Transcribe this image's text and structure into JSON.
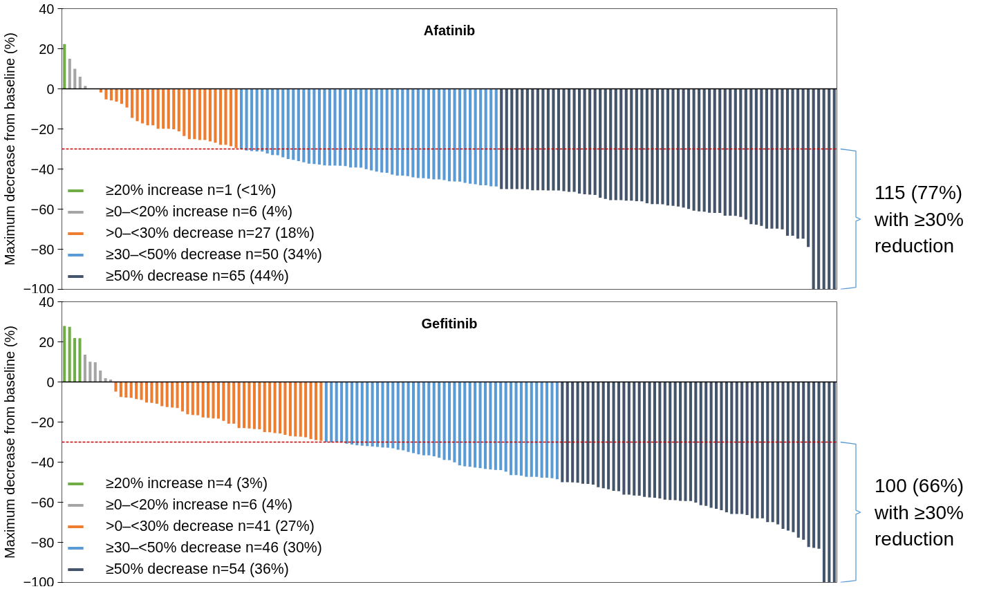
{
  "chart_data": [
    {
      "type": "bar",
      "title": "Afatinib",
      "ylabel": "Maximum decrease from baseline (%)",
      "ylim": [
        -100,
        40
      ],
      "tick_labels": "y",
      "grid": false,
      "legend": "bottom left",
      "categories": [
        null,
        null,
        null,
        null,
        null,
        null,
        null,
        null,
        null,
        null,
        null,
        null,
        null,
        null,
        null,
        null,
        null,
        null,
        null,
        null,
        null,
        null,
        null,
        null,
        null,
        null,
        null,
        null,
        null,
        null,
        null,
        null,
        null,
        null,
        null,
        null,
        null,
        null,
        null,
        null,
        null,
        null,
        null,
        null,
        null,
        null,
        null,
        null,
        null,
        null,
        null,
        null,
        null,
        null,
        null,
        null,
        null,
        null,
        null,
        null,
        null,
        null,
        null,
        null,
        null,
        null,
        null,
        null,
        null,
        null,
        null,
        null,
        null,
        null,
        null,
        null,
        null,
        null,
        null,
        null,
        null,
        null,
        null,
        null,
        null,
        null,
        null,
        null,
        null,
        null,
        null,
        null,
        null,
        null,
        null,
        null,
        null,
        null,
        null,
        null,
        null,
        null,
        null,
        null,
        null,
        null,
        null,
        null,
        null,
        null,
        null,
        null,
        null,
        null,
        null,
        null,
        null,
        null,
        null,
        null,
        null,
        null,
        null,
        null,
        null,
        null,
        null,
        null,
        null,
        null,
        null,
        null,
        null,
        null,
        null,
        null,
        null,
        null,
        null,
        null,
        null,
        null,
        null,
        null,
        null,
        null,
        null,
        null,
        null
      ],
      "yticks": [
        {
          "value": -100,
          "label": "−100"
        },
        {
          "value": -80,
          "label": "−80"
        },
        {
          "value": -60,
          "label": "−60"
        },
        {
          "value": -40,
          "label": "−40"
        },
        {
          "value": -20,
          "label": "−20"
        },
        0,
        20,
        40
      ],
      "ref_lines": [
        {
          "axis": "y",
          "value": 0,
          "color": "#000000",
          "line_style": "solid"
        },
        {
          "axis": "y",
          "value": -30,
          "color": "#c00000",
          "line_style": "dashed"
        }
      ],
      "annotations": [
        "115 (77%)\nwith ≥30%\nreduction"
      ],
      "series": [
        {
          "name": "≥20% increase n=1 (<1%)",
          "color": "#70ad47",
          "values": [
            22.3,
            null,
            null,
            null,
            null,
            null,
            null,
            null,
            null,
            null,
            null,
            null,
            null,
            null,
            null,
            null,
            null,
            null,
            null,
            null,
            null,
            null,
            null,
            null,
            null,
            null,
            null,
            null,
            null,
            null,
            null,
            null,
            null,
            null,
            null,
            null,
            null,
            null,
            null,
            null,
            null,
            null,
            null,
            null,
            null,
            null,
            null,
            null,
            null,
            null,
            null,
            null,
            null,
            null,
            null,
            null,
            null,
            null,
            null,
            null,
            null,
            null,
            null,
            null,
            null,
            null,
            null,
            null,
            null,
            null,
            null,
            null,
            null,
            null,
            null,
            null,
            null,
            null,
            null,
            null,
            null,
            null,
            null,
            null,
            null,
            null,
            null,
            null,
            null,
            null,
            null,
            null,
            null,
            null,
            null,
            null,
            null,
            null,
            null,
            null,
            null,
            null,
            null,
            null,
            null,
            null,
            null,
            null,
            null,
            null,
            null,
            null,
            null,
            null,
            null,
            null,
            null,
            null,
            null,
            null,
            null,
            null,
            null,
            null,
            null,
            null,
            null,
            null,
            null,
            null,
            null,
            null,
            null,
            null,
            null,
            null,
            null,
            null,
            null,
            null,
            null,
            null,
            null,
            null,
            null,
            null,
            null,
            null,
            null
          ]
        },
        {
          "name": "≥0–<20% increase n=6 (4%)",
          "color": "#a5a5a5",
          "values": [
            null,
            15,
            10,
            6,
            1.5,
            0,
            0,
            null,
            null,
            null,
            null,
            null,
            null,
            null,
            null,
            null,
            null,
            null,
            null,
            null,
            null,
            null,
            null,
            null,
            null,
            null,
            null,
            null,
            null,
            null,
            null,
            null,
            null,
            null,
            null,
            null,
            null,
            null,
            null,
            null,
            null,
            null,
            null,
            null,
            null,
            null,
            null,
            null,
            null,
            null,
            null,
            null,
            null,
            null,
            null,
            null,
            null,
            null,
            null,
            null,
            null,
            null,
            null,
            null,
            null,
            null,
            null,
            null,
            null,
            null,
            null,
            null,
            null,
            null,
            null,
            null,
            null,
            null,
            null,
            null,
            null,
            null,
            null,
            null,
            null,
            null,
            null,
            null,
            null,
            null,
            null,
            null,
            null,
            null,
            null,
            null,
            null,
            null,
            null,
            null,
            null,
            null,
            null,
            null,
            null,
            null,
            null,
            null,
            null,
            null,
            null,
            null,
            null,
            null,
            null,
            null,
            null,
            null,
            null,
            null,
            null,
            null,
            null,
            null,
            null,
            null,
            null,
            null,
            null,
            null,
            null,
            null,
            null,
            null,
            null,
            null,
            null,
            null,
            null,
            null,
            null,
            null,
            null,
            null,
            null,
            null,
            null,
            null,
            null
          ]
        },
        {
          "name": ">0–<30% decrease n=27 (18%)",
          "color": "#ed7d31",
          "values": [
            null,
            null,
            null,
            null,
            null,
            null,
            null,
            -1.8,
            -5.3,
            -5.8,
            -6.4,
            -7.5,
            -9.3,
            -14.5,
            -16.1,
            -17.2,
            -18.2,
            -18.2,
            -19.9,
            -19.9,
            -19.9,
            -20.2,
            -21.2,
            -23.5,
            -25.1,
            -25.1,
            -25.5,
            -25.5,
            -26.2,
            -26.9,
            -27.9,
            -27.9,
            -28.6,
            -29.6,
            null,
            null,
            null,
            null,
            null,
            null,
            null,
            null,
            null,
            null,
            null,
            null,
            null,
            null,
            null,
            null,
            null,
            null,
            null,
            null,
            null,
            null,
            null,
            null,
            null,
            null,
            null,
            null,
            null,
            null,
            null,
            null,
            null,
            null,
            null,
            null,
            null,
            null,
            null,
            null,
            null,
            null,
            null,
            null,
            null,
            null,
            null,
            null,
            null,
            null,
            null,
            null,
            null,
            null,
            null,
            null,
            null,
            null,
            null,
            null,
            null,
            null,
            null,
            null,
            null,
            null,
            null,
            null,
            null,
            null,
            null,
            null,
            null,
            null,
            null,
            null,
            null,
            null,
            null,
            null,
            null,
            null,
            null,
            null,
            null,
            null,
            null,
            null,
            null,
            null,
            null,
            null,
            null,
            null,
            null,
            null,
            null,
            null,
            null,
            null,
            null,
            null,
            null,
            null,
            null,
            null,
            null,
            null,
            null,
            null,
            null,
            null,
            null,
            null,
            null
          ]
        },
        {
          "name": "≥30–<50% decrease n=50 (34%)",
          "color": "#5b9bd5",
          "values": [
            null,
            null,
            null,
            null,
            null,
            null,
            null,
            null,
            null,
            null,
            null,
            null,
            null,
            null,
            null,
            null,
            null,
            null,
            null,
            null,
            null,
            null,
            null,
            null,
            null,
            null,
            null,
            null,
            null,
            null,
            null,
            null,
            null,
            null,
            -30.0,
            -30.8,
            -31.0,
            -31.2,
            -31.3,
            -32.2,
            -33.0,
            -33.1,
            -34.1,
            -35.0,
            -35.4,
            -36.0,
            -36.6,
            -37.3,
            -37.5,
            -37.8,
            -38.2,
            -38.3,
            -38.3,
            -38.4,
            -38.5,
            -39.2,
            -39.2,
            -39.3,
            -40.1,
            -40.7,
            -41.3,
            -41.7,
            -41.9,
            -42.8,
            -43.3,
            -43.3,
            -43.5,
            -44.1,
            -44.5,
            -44.6,
            -44.8,
            -45.2,
            -45.2,
            -45.5,
            -46.1,
            -46.2,
            -46.3,
            -46.9,
            -47.3,
            -47.6,
            -48.1,
            -48.1,
            -48.6,
            -48.7,
            null,
            null,
            null,
            null,
            null,
            null,
            null,
            null,
            null,
            null,
            null,
            null,
            null,
            null,
            null,
            null,
            null,
            null,
            null,
            null,
            null,
            null,
            null,
            null,
            null,
            null,
            null,
            null,
            null,
            null,
            null,
            null,
            null,
            null,
            null,
            null,
            null,
            null,
            null,
            null,
            null,
            null,
            null,
            null,
            null,
            null,
            null,
            null,
            null,
            null,
            null,
            null,
            null,
            null,
            null,
            null,
            null,
            null,
            null,
            null,
            null,
            null,
            null,
            null,
            null
          ]
        },
        {
          "name": "≥50% decrease n=65 (44%)",
          "color": "#44546a",
          "values": [
            null,
            null,
            null,
            null,
            null,
            null,
            null,
            null,
            null,
            null,
            null,
            null,
            null,
            null,
            null,
            null,
            null,
            null,
            null,
            null,
            null,
            null,
            null,
            null,
            null,
            null,
            null,
            null,
            null,
            null,
            null,
            null,
            null,
            null,
            null,
            null,
            null,
            null,
            null,
            null,
            null,
            null,
            null,
            null,
            null,
            null,
            null,
            null,
            null,
            null,
            null,
            null,
            null,
            null,
            null,
            null,
            null,
            null,
            null,
            null,
            null,
            null,
            null,
            null,
            null,
            null,
            null,
            null,
            null,
            null,
            null,
            null,
            null,
            null,
            null,
            null,
            null,
            null,
            null,
            null,
            null,
            null,
            null,
            null,
            -50.0,
            -50.0,
            -50.0,
            -50.0,
            -50.0,
            -50.1,
            -50.6,
            -50.6,
            -50.6,
            -50.7,
            -50.7,
            -50.7,
            -51.0,
            -51.4,
            -51.4,
            -52.2,
            -52.6,
            -52.8,
            -52.9,
            -54.3,
            -54.9,
            -55.5,
            -55.5,
            -55.5,
            -55.8,
            -55.8,
            -56.0,
            -56.1,
            -57.1,
            -57.5,
            -57.5,
            -57.6,
            -58.2,
            -58.4,
            -58.7,
            -59.2,
            -59.9,
            -60.8,
            -61.1,
            -61.3,
            -61.8,
            -61.9,
            -61.9,
            -63.3,
            -63.3,
            -63.4,
            -63.9,
            -65.2,
            -67.5,
            -67.8,
            -68.4,
            -69.7,
            -69.7,
            -69.7,
            -70.1,
            -73.3,
            -73.3,
            -74.7,
            -74.7,
            -78.9,
            -100,
            -100,
            -100,
            -100,
            -100
          ]
        }
      ]
    },
    {
      "type": "bar",
      "title": "Gefitinib",
      "ylabel": "Maximum decrease from baseline (%)",
      "ylim": [
        -100,
        40
      ],
      "tick_labels": "y",
      "grid": false,
      "legend": "bottom left",
      "categories": [
        null,
        null,
        null,
        null,
        null,
        null,
        null,
        null,
        null,
        null,
        null,
        null,
        null,
        null,
        null,
        null,
        null,
        null,
        null,
        null,
        null,
        null,
        null,
        null,
        null,
        null,
        null,
        null,
        null,
        null,
        null,
        null,
        null,
        null,
        null,
        null,
        null,
        null,
        null,
        null,
        null,
        null,
        null,
        null,
        null,
        null,
        null,
        null,
        null,
        null,
        null,
        null,
        null,
        null,
        null,
        null,
        null,
        null,
        null,
        null,
        null,
        null,
        null,
        null,
        null,
        null,
        null,
        null,
        null,
        null,
        null,
        null,
        null,
        null,
        null,
        null,
        null,
        null,
        null,
        null,
        null,
        null,
        null,
        null,
        null,
        null,
        null,
        null,
        null,
        null,
        null,
        null,
        null,
        null,
        null,
        null,
        null,
        null,
        null,
        null,
        null,
        null,
        null,
        null,
        null,
        null,
        null,
        null,
        null,
        null,
        null,
        null,
        null,
        null,
        null,
        null,
        null,
        null,
        null,
        null,
        null,
        null,
        null,
        null,
        null,
        null,
        null,
        null,
        null,
        null,
        null,
        null,
        null,
        null,
        null,
        null,
        null,
        null,
        null,
        null,
        null,
        null,
        null,
        null,
        null,
        null,
        null,
        null,
        null,
        null,
        null
      ],
      "yticks": [
        {
          "value": -100,
          "label": "−100"
        },
        {
          "value": -80,
          "label": "−80"
        },
        {
          "value": -60,
          "label": "−60"
        },
        {
          "value": -40,
          "label": "−40"
        },
        {
          "value": -20,
          "label": "−20"
        },
        0,
        20,
        40
      ],
      "ref_lines": [
        {
          "axis": "y",
          "value": 0,
          "color": "#000000",
          "line_style": "solid"
        },
        {
          "axis": "y",
          "value": -30,
          "color": "#c00000",
          "line_style": "dashed"
        }
      ],
      "annotations": [
        "100 (66%)\nwith ≥30%\nreduction"
      ],
      "series": [
        {
          "name": "≥20% increase n=4 (3%)",
          "color": "#70ad47",
          "values": [
            27.9,
            27.5,
            21.9,
            21.8,
            null,
            null,
            null,
            null,
            null,
            null,
            null,
            null,
            null,
            null,
            null,
            null,
            null,
            null,
            null,
            null,
            null,
            null,
            null,
            null,
            null,
            null,
            null,
            null,
            null,
            null,
            null,
            null,
            null,
            null,
            null,
            null,
            null,
            null,
            null,
            null,
            null,
            null,
            null,
            null,
            null,
            null,
            null,
            null,
            null,
            null,
            null,
            null,
            null,
            null,
            null,
            null,
            null,
            null,
            null,
            null,
            null,
            null,
            null,
            null,
            null,
            null,
            null,
            null,
            null,
            null,
            null,
            null,
            null,
            null,
            null,
            null,
            null,
            null,
            null,
            null,
            null,
            null,
            null,
            null,
            null,
            null,
            null,
            null,
            null,
            null,
            null,
            null,
            null,
            null,
            null,
            null,
            null,
            null,
            null,
            null,
            null,
            null,
            null,
            null,
            null,
            null,
            null,
            null,
            null,
            null,
            null,
            null,
            null,
            null,
            null,
            null,
            null,
            null,
            null,
            null,
            null,
            null,
            null,
            null,
            null,
            null,
            null,
            null,
            null,
            null,
            null,
            null,
            null,
            null,
            null,
            null,
            null,
            null,
            null,
            null,
            null,
            null,
            null,
            null,
            null,
            null,
            null,
            null,
            null,
            null,
            null
          ]
        },
        {
          "name": "≥0–<20% increase n=6 (4%)",
          "color": "#a5a5a5",
          "values": [
            null,
            null,
            null,
            null,
            13.6,
            10.1,
            9.8,
            5.7,
            1.9,
            1.2,
            null,
            null,
            null,
            null,
            null,
            null,
            null,
            null,
            null,
            null,
            null,
            null,
            null,
            null,
            null,
            null,
            null,
            null,
            null,
            null,
            null,
            null,
            null,
            null,
            null,
            null,
            null,
            null,
            null,
            null,
            null,
            null,
            null,
            null,
            null,
            null,
            null,
            null,
            null,
            null,
            null,
            null,
            null,
            null,
            null,
            null,
            null,
            null,
            null,
            null,
            null,
            null,
            null,
            null,
            null,
            null,
            null,
            null,
            null,
            null,
            null,
            null,
            null,
            null,
            null,
            null,
            null,
            null,
            null,
            null,
            null,
            null,
            null,
            null,
            null,
            null,
            null,
            null,
            null,
            null,
            null,
            null,
            null,
            null,
            null,
            null,
            null,
            null,
            null,
            null,
            null,
            null,
            null,
            null,
            null,
            null,
            null,
            null,
            null,
            null,
            null,
            null,
            null,
            null,
            null,
            null,
            null,
            null,
            null,
            null,
            null,
            null,
            null,
            null,
            null,
            null,
            null,
            null,
            null,
            null,
            null,
            null,
            null,
            null,
            null,
            null,
            null,
            null,
            null,
            null,
            null,
            null,
            null,
            null,
            null,
            null,
            null,
            null,
            null,
            null,
            null
          ]
        },
        {
          "name": ">0–<30% decrease n=41 (27%)",
          "color": "#ed7d31",
          "values": [
            null,
            null,
            null,
            null,
            null,
            null,
            null,
            null,
            null,
            null,
            -4.8,
            -7.5,
            -7.8,
            -7.9,
            -8.5,
            -9.0,
            -10.3,
            -10.4,
            -10.9,
            -12.1,
            -12.5,
            -12.8,
            -13.0,
            -14.7,
            -16.1,
            -16.5,
            -16.6,
            -17.7,
            -17.9,
            -18.2,
            -18.3,
            -19.4,
            -20.8,
            -20.8,
            -23.0,
            -23.0,
            -23.2,
            -23.5,
            -23.6,
            -25.0,
            -25.1,
            -25.5,
            -25.7,
            -26.4,
            -27.0,
            -27.2,
            -27.3,
            -27.6,
            -28.5,
            -29.0,
            -29.4,
            null,
            null,
            null,
            null,
            null,
            null,
            null,
            null,
            null,
            null,
            null,
            null,
            null,
            null,
            null,
            null,
            null,
            null,
            null,
            null,
            null,
            null,
            null,
            null,
            null,
            null,
            null,
            null,
            null,
            null,
            null,
            null,
            null,
            null,
            null,
            null,
            null,
            null,
            null,
            null,
            null,
            null,
            null,
            null,
            null,
            null,
            null,
            null,
            null,
            null,
            null,
            null,
            null,
            null,
            null,
            null,
            null,
            null,
            null,
            null,
            null,
            null,
            null,
            null,
            null,
            null,
            null,
            null,
            null,
            null,
            null,
            null,
            null,
            null,
            null,
            null,
            null,
            null,
            null,
            null,
            null,
            null,
            null,
            null,
            null,
            null,
            null,
            null,
            null,
            null,
            null,
            null,
            null,
            null,
            null,
            null,
            null,
            null,
            null,
            null
          ]
        },
        {
          "name": "≥30–<50% decrease n=46 (30%)",
          "color": "#5b9bd5",
          "values": [
            null,
            null,
            null,
            null,
            null,
            null,
            null,
            null,
            null,
            null,
            null,
            null,
            null,
            null,
            null,
            null,
            null,
            null,
            null,
            null,
            null,
            null,
            null,
            null,
            null,
            null,
            null,
            null,
            null,
            null,
            null,
            null,
            null,
            null,
            null,
            null,
            null,
            null,
            null,
            null,
            null,
            null,
            null,
            null,
            null,
            null,
            null,
            null,
            null,
            null,
            null,
            -30.0,
            -30.2,
            -30.1,
            -30.2,
            -30.8,
            -31.2,
            -31.6,
            -31.8,
            -32.0,
            -32.2,
            -32.4,
            -32.7,
            -32.8,
            -33.1,
            -33.8,
            -34.1,
            -34.9,
            -35.5,
            -36.1,
            -36.6,
            -36.6,
            -37.1,
            -37.8,
            -38.9,
            -39.0,
            -40.1,
            -41.6,
            -42.1,
            -42.3,
            -42.7,
            -43.0,
            -43.4,
            -43.6,
            -43.9,
            -44.0,
            -44.7,
            -46.5,
            -46.5,
            -46.7,
            -47.3,
            -47.3,
            -47.3,
            -47.8,
            -47.8,
            -48.0,
            -48.5,
            null,
            null,
            null,
            null,
            null,
            null,
            null,
            null,
            null,
            null,
            null,
            null,
            null,
            null,
            null,
            null,
            null,
            null,
            null,
            null,
            null,
            null,
            null,
            null,
            null,
            null,
            null,
            null,
            null,
            null,
            null,
            null,
            null,
            null,
            null,
            null,
            null,
            null,
            null,
            null,
            null,
            null,
            null,
            null,
            null,
            null,
            null,
            null,
            null,
            null,
            null,
            null,
            null,
            null
          ]
        },
        {
          "name": "≥50% decrease n=54 (36%)",
          "color": "#44546a",
          "values": [
            null,
            null,
            null,
            null,
            null,
            null,
            null,
            null,
            null,
            null,
            null,
            null,
            null,
            null,
            null,
            null,
            null,
            null,
            null,
            null,
            null,
            null,
            null,
            null,
            null,
            null,
            null,
            null,
            null,
            null,
            null,
            null,
            null,
            null,
            null,
            null,
            null,
            null,
            null,
            null,
            null,
            null,
            null,
            null,
            null,
            null,
            null,
            null,
            null,
            null,
            null,
            null,
            null,
            null,
            null,
            null,
            null,
            null,
            null,
            null,
            null,
            null,
            null,
            null,
            null,
            null,
            null,
            null,
            null,
            null,
            null,
            null,
            null,
            null,
            null,
            null,
            null,
            null,
            null,
            null,
            null,
            null,
            null,
            null,
            null,
            null,
            null,
            null,
            null,
            null,
            null,
            null,
            null,
            null,
            null,
            null,
            null,
            -50.0,
            -50.0,
            -50.1,
            -50.3,
            -50.8,
            -50.9,
            -51.2,
            -52.5,
            -53.0,
            -53.5,
            -54.3,
            -54.5,
            -56.2,
            -56.2,
            -56.6,
            -56.7,
            -57.3,
            -57.6,
            -57.8,
            -58.1,
            -58.7,
            -58.9,
            -59.0,
            -59.3,
            -59.4,
            -59.4,
            -60.2,
            -61.5,
            -61.8,
            -62.8,
            -63.3,
            -64.0,
            -65.0,
            -65.9,
            -65.9,
            -65.9,
            -66.4,
            -68.0,
            -68.0,
            -68.0,
            -69.9,
            -69.9,
            -71.0,
            -73.3,
            -74.1,
            -74.9,
            -77.7,
            -78.7,
            -82.3,
            -82.8,
            -83.2,
            -100,
            -100,
            -100
          ]
        }
      ]
    }
  ]
}
